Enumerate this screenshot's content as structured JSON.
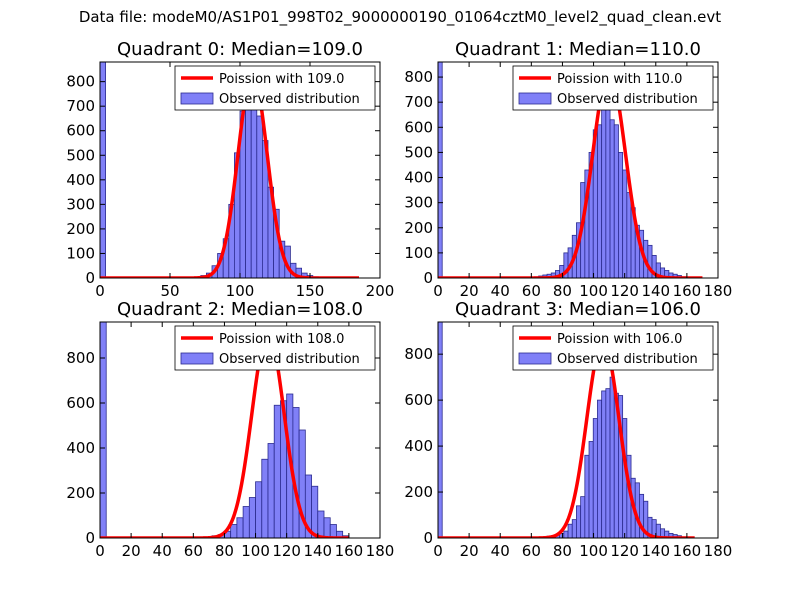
{
  "figure_title": "Data file: modeM0/AS1P01_998T02_9000000190_01064cztM0_level2_quad_clean.evt",
  "colors": {
    "histogram_fill": "#8080f7",
    "histogram_edge": "#2b2b8f",
    "poisson_line": "#ff0000"
  },
  "chart_data": [
    {
      "type": "bar",
      "title": "Quadrant 0: Median=109.0",
      "median": 109.0,
      "xlim": [
        0,
        200
      ],
      "ylim": [
        0,
        880
      ],
      "xticks": [
        0,
        50,
        100,
        150,
        200
      ],
      "yticks": [
        0,
        100,
        200,
        300,
        400,
        500,
        600,
        700,
        800
      ],
      "bin_width": 4,
      "legend": {
        "position": "top-right",
        "line_label": "Poission with 109.0",
        "bar_label": "Observed distribution"
      },
      "bin_starts": [
        0,
        72,
        76,
        80,
        84,
        88,
        92,
        96,
        100,
        104,
        108,
        112,
        116,
        120,
        124,
        128,
        132,
        136,
        140,
        144,
        148,
        152
      ],
      "counts": [
        880,
        10,
        20,
        50,
        100,
        160,
        300,
        510,
        680,
        760,
        800,
        660,
        560,
        370,
        280,
        150,
        130,
        60,
        40,
        20,
        10,
        5
      ],
      "poisson": {
        "mean": 109.0,
        "peak": 830,
        "x_range": [
          0,
          185
        ]
      }
    },
    {
      "type": "bar",
      "title": "Quadrant 1: Median=110.0",
      "median": 110.0,
      "xlim": [
        0,
        180
      ],
      "ylim": [
        0,
        860
      ],
      "xticks": [
        0,
        20,
        40,
        60,
        80,
        100,
        120,
        140,
        160,
        180
      ],
      "yticks": [
        0,
        100,
        200,
        300,
        400,
        500,
        600,
        700,
        800
      ],
      "bin_width": 2.7,
      "legend": {
        "position": "top-right",
        "line_label": "Poission with 110.0",
        "bar_label": "Observed distribution"
      },
      "bin_starts": [
        0,
        62,
        64.7,
        67.4,
        70.1,
        72.8,
        75.5,
        78.2,
        80.9,
        83.6,
        86.3,
        89,
        91.7,
        94.4,
        97.1,
        99.8,
        102.5,
        105.2,
        107.9,
        110.6,
        113.3,
        116,
        118.7,
        121.4,
        124.1,
        126.8,
        129.5,
        132.2,
        134.9,
        137.6,
        140.3,
        143,
        145.7,
        148.4,
        151.1,
        153.8,
        156.5,
        159.2
      ],
      "counts": [
        860,
        5,
        8,
        12,
        15,
        20,
        30,
        50,
        100,
        120,
        170,
        220,
        380,
        430,
        500,
        590,
        610,
        680,
        720,
        630,
        610,
        500,
        430,
        340,
        280,
        210,
        190,
        150,
        130,
        90,
        60,
        40,
        30,
        20,
        15,
        10,
        5,
        3
      ],
      "poisson": {
        "mean": 110.0,
        "peak": 820,
        "x_range": [
          0,
          170
        ]
      }
    },
    {
      "type": "bar",
      "title": "Quadrant 2: Median=108.0",
      "median": 108.0,
      "xlim": [
        0,
        180
      ],
      "ylim": [
        0,
        960
      ],
      "xticks": [
        0,
        20,
        40,
        60,
        80,
        100,
        120,
        140,
        160,
        180
      ],
      "yticks": [
        0,
        200,
        400,
        600,
        800
      ],
      "bin_width": 4,
      "legend": {
        "position": "top-right",
        "line_label": "Poission with 108.0",
        "bar_label": "Observed distribution"
      },
      "bin_starts": [
        0,
        64,
        68,
        72,
        76,
        80,
        84,
        88,
        92,
        96,
        100,
        104,
        108,
        112,
        116,
        120,
        124,
        128,
        132,
        136,
        140,
        144,
        148,
        152,
        156
      ],
      "counts": [
        960,
        5,
        5,
        10,
        15,
        30,
        60,
        90,
        140,
        180,
        250,
        350,
        420,
        590,
        610,
        640,
        580,
        480,
        280,
        230,
        120,
        90,
        60,
        30,
        10
      ],
      "poisson": {
        "mean": 108.0,
        "peak": 910,
        "x_range": [
          0,
          160
        ]
      }
    },
    {
      "type": "bar",
      "title": "Quadrant 3: Median=106.0",
      "median": 106.0,
      "xlim": [
        0,
        180
      ],
      "ylim": [
        0,
        940
      ],
      "xticks": [
        0,
        20,
        40,
        60,
        80,
        100,
        120,
        140,
        160,
        180
      ],
      "yticks": [
        0,
        200,
        400,
        600,
        800
      ],
      "bin_width": 2.7,
      "legend": {
        "position": "top-right",
        "line_label": "Poission with 106.0",
        "bar_label": "Observed distribution"
      },
      "bin_starts": [
        0,
        64.7,
        67.4,
        70.1,
        72.8,
        75.5,
        78.2,
        80.9,
        83.6,
        86.3,
        89,
        91.7,
        94.4,
        97.1,
        99.8,
        102.5,
        105.2,
        107.9,
        110.6,
        113.3,
        116,
        118.7,
        121.4,
        124.1,
        126.8,
        129.5,
        132.2,
        134.9,
        137.6,
        140.3,
        143,
        145.7,
        148.4,
        151.1,
        153.8,
        156.5
      ],
      "counts": [
        940,
        3,
        5,
        8,
        10,
        15,
        20,
        30,
        60,
        80,
        140,
        180,
        360,
        420,
        520,
        600,
        640,
        650,
        700,
        630,
        620,
        520,
        360,
        260,
        240,
        190,
        160,
        90,
        80,
        60,
        40,
        30,
        20,
        15,
        10,
        5
      ],
      "poisson": {
        "mean": 106.0,
        "peak": 860,
        "x_range": [
          0,
          165
        ]
      }
    }
  ]
}
